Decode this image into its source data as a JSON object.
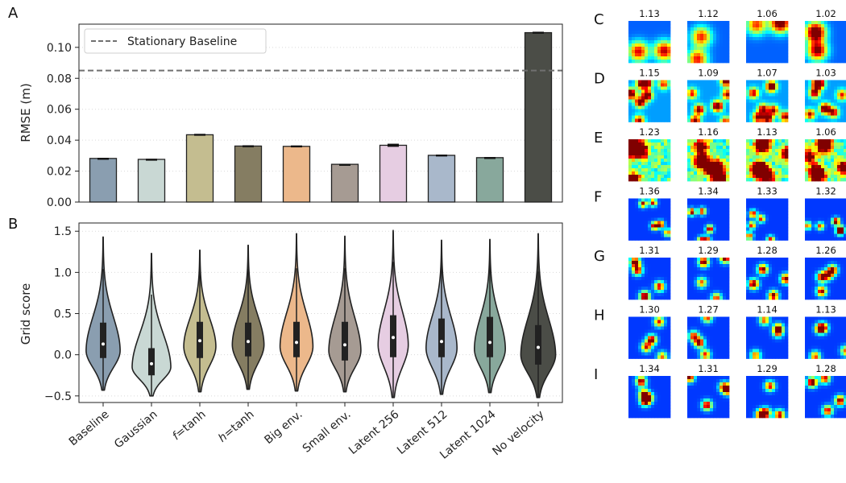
{
  "panel_labels": {
    "A": "A",
    "B": "B",
    "C": "C",
    "D": "D",
    "E": "E",
    "F": "F",
    "G": "G",
    "H": "H",
    "I": "I"
  },
  "chart_data": [
    {
      "panel": "A",
      "type": "bar",
      "categories": [
        "Baseline",
        "Gaussian",
        "f=tanh",
        "h=tanh",
        "Big env.",
        "Small env.",
        "Latent 256",
        "Latent 512",
        "Latent 1024",
        "No velocity"
      ],
      "category_labels": [
        {
          "italic": "",
          "rest": "Baseline"
        },
        {
          "italic": "",
          "rest": "Gaussian"
        },
        {
          "italic": "f",
          "rest": "=tanh"
        },
        {
          "italic": "h",
          "rest": "=tanh"
        },
        {
          "italic": "",
          "rest": "Big env."
        },
        {
          "italic": "",
          "rest": "Small env."
        },
        {
          "italic": "",
          "rest": "Latent 256"
        },
        {
          "italic": "",
          "rest": "Latent 512"
        },
        {
          "italic": "",
          "rest": "Latent 1024"
        },
        {
          "italic": "",
          "rest": "No velocity"
        }
      ],
      "values": [
        0.0282,
        0.0276,
        0.0435,
        0.0362,
        0.036,
        0.0244,
        0.0367,
        0.0302,
        0.0287,
        0.1095
      ],
      "errors": [
        0.0004,
        0.0004,
        0.0006,
        0.0005,
        0.0006,
        0.0003,
        0.001,
        0.0005,
        0.0004,
        0.0006
      ],
      "colors": [
        "#8a9eb0",
        "#c9d8d4",
        "#c4bd90",
        "#857d62",
        "#ecb88b",
        "#a69b93",
        "#e6cde2",
        "#a9b8cb",
        "#88a89c",
        "#4b4d47"
      ],
      "ylabel": "RMSE (m)",
      "ylim": [
        0,
        0.115
      ],
      "yticks": [
        0.0,
        0.02,
        0.04,
        0.06,
        0.08,
        0.1
      ],
      "ytick_labels": [
        "0.00",
        "0.02",
        "0.04",
        "0.06",
        "0.08",
        "0.10"
      ],
      "baseline": {
        "value": 0.085,
        "label": "Stationary Baseline",
        "color": "#707070"
      },
      "legend_position": "top-left",
      "grid": "horizontal dotted"
    },
    {
      "panel": "B",
      "type": "violin",
      "categories": [
        "Baseline",
        "Gaussian",
        "f=tanh",
        "h=tanh",
        "Big env.",
        "Small env.",
        "Latent 256",
        "Latent 512",
        "Latent 1024",
        "No velocity"
      ],
      "ylabel": "Grid score",
      "ylim": [
        -0.58,
        1.6
      ],
      "yticks": [
        -0.5,
        0.0,
        0.5,
        1.0,
        1.5
      ],
      "ytick_labels": [
        "−0.5",
        "0.0",
        "0.5",
        "1.0",
        "1.5"
      ],
      "grid": "horizontal dotted",
      "distributions": [
        {
          "min": -0.43,
          "max": 1.43,
          "q1": -0.04,
          "median": 0.13,
          "q3": 0.39,
          "mode": 0.05,
          "width": 0.88
        },
        {
          "min": -0.5,
          "max": 1.23,
          "q1": -0.25,
          "median": -0.11,
          "q3": 0.08,
          "mode": -0.15,
          "width": 1.0
        },
        {
          "min": -0.45,
          "max": 1.27,
          "q1": -0.04,
          "median": 0.17,
          "q3": 0.4,
          "mode": 0.1,
          "width": 0.83
        },
        {
          "min": -0.42,
          "max": 1.33,
          "q1": -0.02,
          "median": 0.16,
          "q3": 0.39,
          "mode": 0.12,
          "width": 0.82
        },
        {
          "min": -0.44,
          "max": 1.47,
          "q1": -0.03,
          "median": 0.15,
          "q3": 0.4,
          "mode": 0.1,
          "width": 0.85
        },
        {
          "min": -0.45,
          "max": 1.44,
          "q1": -0.07,
          "median": 0.12,
          "q3": 0.4,
          "mode": 0.05,
          "width": 0.83
        },
        {
          "min": -0.52,
          "max": 1.51,
          "q1": -0.03,
          "median": 0.21,
          "q3": 0.48,
          "mode": 0.12,
          "width": 0.78
        },
        {
          "min": -0.48,
          "max": 1.39,
          "q1": -0.03,
          "median": 0.16,
          "q3": 0.44,
          "mode": 0.08,
          "width": 0.8
        },
        {
          "min": -0.46,
          "max": 1.4,
          "q1": -0.03,
          "median": 0.15,
          "q3": 0.46,
          "mode": 0.07,
          "width": 0.8
        },
        {
          "min": -0.52,
          "max": 1.47,
          "q1": -0.12,
          "median": 0.09,
          "q3": 0.36,
          "mode": 0.0,
          "width": 0.9
        }
      ]
    },
    {
      "panel": "C-I",
      "type": "heatmap",
      "colormap": "jet",
      "rows": [
        {
          "label": "C",
          "scores": [
            "1.13",
            "1.12",
            "1.06",
            "1.02"
          ]
        },
        {
          "label": "D",
          "scores": [
            "1.15",
            "1.09",
            "1.07",
            "1.03"
          ]
        },
        {
          "label": "E",
          "scores": [
            "1.23",
            "1.16",
            "1.13",
            "1.06"
          ]
        },
        {
          "label": "F",
          "scores": [
            "1.36",
            "1.34",
            "1.33",
            "1.32"
          ]
        },
        {
          "label": "G",
          "scores": [
            "1.31",
            "1.29",
            "1.28",
            "1.26"
          ]
        },
        {
          "label": "H",
          "scores": [
            "1.30",
            "1.27",
            "1.14",
            "1.13"
          ]
        },
        {
          "label": "I",
          "scores": [
            "1.34",
            "1.31",
            "1.29",
            "1.28"
          ]
        }
      ]
    }
  ]
}
